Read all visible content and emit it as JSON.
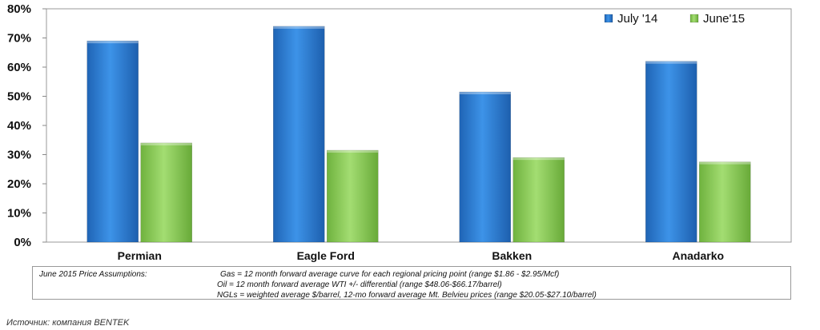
{
  "chart_data": {
    "type": "bar",
    "categories": [
      "Permian",
      "Eagle Ford",
      "Bakken",
      "Anadarko"
    ],
    "series": [
      {
        "name": "July '14",
        "color": "#2b7fd6",
        "values": [
          69,
          74,
          51.5,
          62
        ]
      },
      {
        "name": "June'15",
        "color": "#8ed05a",
        "values": [
          34,
          31.5,
          29,
          27.5
        ]
      }
    ],
    "ylim": [
      0,
      80
    ],
    "yticks": [
      "0%",
      "10%",
      "20%",
      "30%",
      "40%",
      "50%",
      "60%",
      "70%",
      "80%"
    ],
    "legend": "top-right",
    "grid": false
  },
  "notes": {
    "heading": "June 2015 Price Assumptions:",
    "lines": [
      "Gas = 12 month forward average curve for each regional pricing point (range $1.86 - $2.95/Mcf)",
      "Oil = 12 month forward average WTI +/- differential (range $48.06-$66.17/barrel)",
      "NGLs = weighted average $/barrel, 12-mo forward average Mt. Belvieu prices (range $20.05-$27.10/barrel)"
    ]
  },
  "source": "Источник: компания BENTEK"
}
